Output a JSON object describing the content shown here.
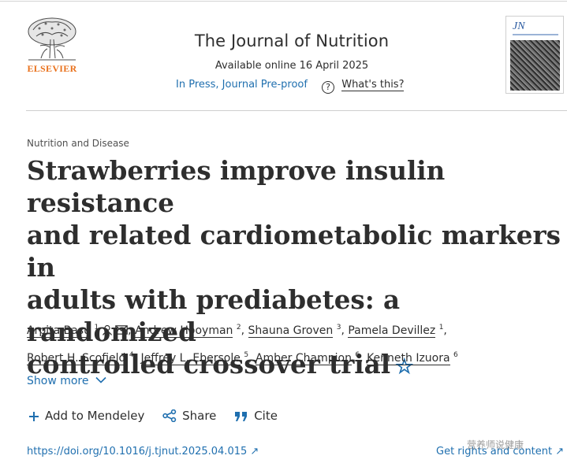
{
  "header": {
    "publisher": "ELSEVIER",
    "journal_title": "The Journal of Nutrition",
    "availability": "Available online 16 April 2025",
    "status_link": "In Press, Journal Pre-proof",
    "help_link": "What's this?",
    "cover_logo": "JN"
  },
  "article": {
    "section": "Nutrition and Disease",
    "title_lines": [
      "Strawberries improve insulin resistance",
      "and related cardiometabolic markers in",
      "adults with prediabetes: a randomized",
      "controlled crossover trial"
    ],
    "authors": [
      {
        "name": "Arpita Basu",
        "sup": "1"
      },
      {
        "name": "Andrew Hooyman",
        "sup": "2"
      },
      {
        "name": "Shauna Groven",
        "sup": "3"
      },
      {
        "name": "Pamela Devillez",
        "sup": "1"
      },
      {
        "name": "Robert H. Scofield",
        "sup": "4"
      },
      {
        "name": "Jeffrey L. Ebersole",
        "sup": "5"
      },
      {
        "name": "Amber Champion",
        "sup": "6"
      },
      {
        "name": "Kenneth Izuora",
        "sup": "6"
      }
    ],
    "show_more": "Show more",
    "actions": {
      "mendeley": "Add to Mendeley",
      "share": "Share",
      "cite": "Cite"
    },
    "doi": "https://doi.org/10.1016/j.tjnut.2025.04.015",
    "rights": "Get rights and content"
  },
  "overlay": {
    "watermark": "营养师说健康"
  },
  "colors": {
    "link": "#1f6faf",
    "publisher": "#e9711c",
    "text": "#2e2e2e"
  }
}
